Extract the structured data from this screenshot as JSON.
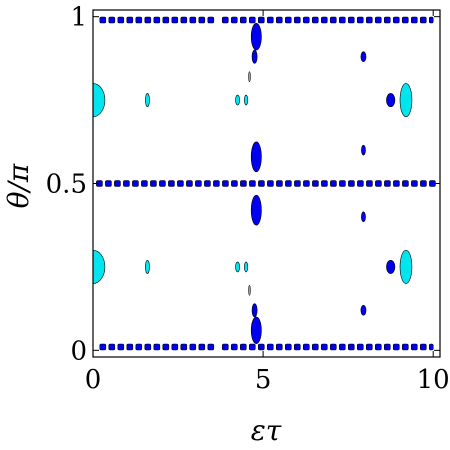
{
  "chart_data": {
    "type": "contour",
    "xlabel": "ετ",
    "ylabel": "θ/π",
    "xlim": [
      0,
      10.2
    ],
    "ylim": [
      -0.02,
      1.02
    ],
    "xticks": [
      0,
      5,
      10
    ],
    "xtick_labels": [
      "0",
      "5",
      "10"
    ],
    "yticks": [
      0,
      0.5,
      1
    ],
    "ytick_labels": [
      "0",
      "0.5",
      "1"
    ],
    "grid": false,
    "colors": {
      "dark_region": "#0000ee",
      "light_region": "#00e5ee",
      "outline": "#000000"
    },
    "regions": [
      {
        "level": "dark",
        "kind": "dashed-row",
        "x_range": [
          0.2,
          3.6
        ],
        "y": 0.99
      },
      {
        "level": "dark",
        "kind": "dashed-row",
        "x_range": [
          3.8,
          10.0
        ],
        "y": 0.99
      },
      {
        "level": "dark",
        "kind": "dashed-row",
        "x_range": [
          0.2,
          3.6
        ],
        "y": 0.01
      },
      {
        "level": "dark",
        "kind": "dashed-row",
        "x_range": [
          3.8,
          10.0
        ],
        "y": 0.01
      },
      {
        "level": "dark",
        "kind": "dashed-row",
        "x_range": [
          0.1,
          10.1
        ],
        "y": 0.5
      },
      {
        "level": "dark",
        "kind": "blob",
        "x": 4.8,
        "y": 0.94,
        "w": 0.3,
        "h": 0.08
      },
      {
        "level": "dark",
        "kind": "blob",
        "x": 4.75,
        "y": 0.88,
        "w": 0.15,
        "h": 0.04
      },
      {
        "level": "dark",
        "kind": "blob",
        "x": 4.8,
        "y": 0.06,
        "w": 0.3,
        "h": 0.08
      },
      {
        "level": "dark",
        "kind": "blob",
        "x": 4.75,
        "y": 0.12,
        "w": 0.15,
        "h": 0.04
      },
      {
        "level": "dark",
        "kind": "blob",
        "x": 4.8,
        "y": 0.58,
        "w": 0.3,
        "h": 0.09
      },
      {
        "level": "dark",
        "kind": "blob",
        "x": 4.8,
        "y": 0.42,
        "w": 0.3,
        "h": 0.09
      },
      {
        "level": "dark",
        "kind": "blob",
        "x": 7.95,
        "y": 0.88,
        "w": 0.15,
        "h": 0.03
      },
      {
        "level": "dark",
        "kind": "blob",
        "x": 7.95,
        "y": 0.12,
        "w": 0.15,
        "h": 0.03
      },
      {
        "level": "dark",
        "kind": "blob",
        "x": 7.95,
        "y": 0.6,
        "w": 0.12,
        "h": 0.03
      },
      {
        "level": "dark",
        "kind": "blob",
        "x": 7.95,
        "y": 0.4,
        "w": 0.12,
        "h": 0.03
      },
      {
        "level": "dark",
        "kind": "blob",
        "x": 8.75,
        "y": 0.75,
        "w": 0.25,
        "h": 0.04
      },
      {
        "level": "dark",
        "kind": "blob",
        "x": 8.75,
        "y": 0.25,
        "w": 0.25,
        "h": 0.04
      },
      {
        "level": "light",
        "kind": "blob",
        "x": 9.2,
        "y": 0.75,
        "w": 0.35,
        "h": 0.1
      },
      {
        "level": "light",
        "kind": "blob",
        "x": 9.2,
        "y": 0.25,
        "w": 0.35,
        "h": 0.1
      },
      {
        "level": "light",
        "kind": "half-disc",
        "x": 0.0,
        "y": 0.75,
        "w": 0.35,
        "h": 0.1
      },
      {
        "level": "light",
        "kind": "half-disc",
        "x": 0.0,
        "y": 0.25,
        "w": 0.35,
        "h": 0.1
      },
      {
        "level": "light",
        "kind": "blob",
        "x": 1.6,
        "y": 0.75,
        "w": 0.12,
        "h": 0.04
      },
      {
        "level": "light",
        "kind": "blob",
        "x": 1.6,
        "y": 0.25,
        "w": 0.12,
        "h": 0.04
      },
      {
        "level": "light",
        "kind": "blob",
        "x": 4.25,
        "y": 0.75,
        "w": 0.12,
        "h": 0.03
      },
      {
        "level": "light",
        "kind": "blob",
        "x": 4.25,
        "y": 0.25,
        "w": 0.12,
        "h": 0.03
      },
      {
        "level": "light",
        "kind": "blob",
        "x": 4.5,
        "y": 0.75,
        "w": 0.1,
        "h": 0.03
      },
      {
        "level": "light",
        "kind": "blob",
        "x": 4.5,
        "y": 0.25,
        "w": 0.1,
        "h": 0.03
      },
      {
        "level": "light",
        "kind": "blob",
        "x": 4.6,
        "y": 0.82,
        "w": 0.05,
        "h": 0.03
      },
      {
        "level": "light",
        "kind": "blob",
        "x": 4.6,
        "y": 0.18,
        "w": 0.05,
        "h": 0.03
      }
    ]
  }
}
